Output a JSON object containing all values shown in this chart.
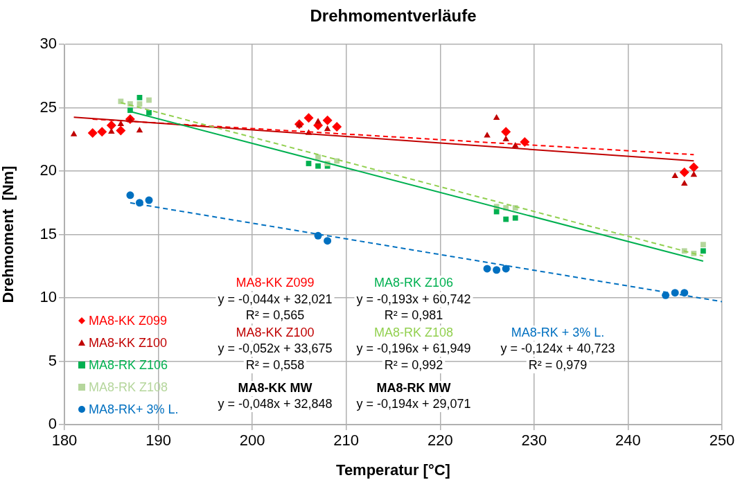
{
  "chart_data": {
    "type": "scatter",
    "title": "Drehmomentverläufe",
    "xlabel": "Temperatur [°C]",
    "ylabel": "Drehmoment  [Nm]",
    "xlim": [
      180,
      250
    ],
    "xticks": [
      180,
      190,
      200,
      210,
      220,
      230,
      240,
      250
    ],
    "ylim": [
      0,
      30
    ],
    "yticks": [
      0,
      5,
      10,
      15,
      20,
      25,
      30
    ],
    "grid": true,
    "legend": "bottom left",
    "series": [
      {
        "name": "MA8-KK Z099",
        "color": "#ff0000",
        "marker": "diamond",
        "x": [
          183,
          184,
          185,
          186,
          187,
          205,
          206,
          207,
          208,
          209,
          227,
          229,
          246,
          247
        ],
        "values": [
          23.0,
          23.1,
          23.6,
          23.2,
          24.1,
          23.7,
          24.2,
          23.6,
          24.0,
          23.5,
          23.1,
          22.3,
          19.9,
          20.3
        ]
      },
      {
        "name": "MA8-KK Z100",
        "color": "#c00000",
        "marker": "triangle",
        "x": [
          181,
          185,
          186,
          187,
          188,
          205,
          206,
          207,
          208,
          225,
          226,
          227,
          228,
          245,
          246,
          247
        ],
        "values": [
          22.9,
          23.1,
          23.7,
          24.0,
          23.2,
          23.6,
          23.0,
          23.9,
          23.3,
          22.8,
          24.2,
          22.5,
          22.0,
          19.6,
          19.0,
          19.7
        ]
      },
      {
        "name": "MA8-RK Z106",
        "color": "#00b050",
        "marker": "square",
        "x": [
          187,
          188,
          189,
          206,
          207,
          208,
          226,
          227,
          228,
          248
        ],
        "values": [
          24.8,
          25.8,
          24.6,
          20.6,
          20.4,
          20.4,
          16.8,
          16.2,
          16.3,
          13.7
        ]
      },
      {
        "name": "MA8-RK Z108",
        "color": "#b5d69c",
        "marker": "square",
        "x": [
          186,
          187,
          188,
          189,
          207,
          208,
          209,
          226,
          227,
          228,
          246,
          247,
          248
        ],
        "values": [
          25.5,
          25.3,
          25.3,
          25.6,
          21.1,
          20.6,
          20.8,
          17.2,
          17.1,
          17.1,
          13.7,
          13.5,
          14.2
        ]
      },
      {
        "name": "MA8-RK+ 3% L.",
        "color": "#0070c0",
        "marker": "circle",
        "x": [
          187,
          188,
          189,
          207,
          208,
          225,
          226,
          227,
          244,
          245,
          246
        ],
        "values": [
          18.1,
          17.5,
          17.7,
          14.9,
          14.5,
          12.3,
          12.2,
          12.3,
          10.2,
          10.4,
          10.4
        ]
      },
      {
        "type": "line",
        "color": "#ff0000",
        "marker": "none",
        "line_style": "dashed",
        "x": [
          183,
          247
        ],
        "values": [
          24.1,
          21.3
        ]
      },
      {
        "type": "line",
        "color": "#c00000",
        "marker": "none",
        "line_style": "solid",
        "x": [
          181,
          247
        ],
        "values": [
          24.25,
          20.8
        ]
      },
      {
        "type": "line",
        "color": "#00b050",
        "marker": "none",
        "line_style": "solid",
        "x": [
          187,
          248
        ],
        "values": [
          24.7,
          12.9
        ]
      },
      {
        "type": "line",
        "color": "#92d050",
        "marker": "none",
        "line_style": "dashed",
        "x": [
          186,
          248
        ],
        "values": [
          25.4,
          13.3
        ]
      },
      {
        "type": "line",
        "color": "#0070c0",
        "marker": "none",
        "line_style": "dashed",
        "x": [
          187,
          250
        ],
        "values": [
          17.5,
          9.7
        ]
      }
    ],
    "annotations": [
      "MA8-KK Z099",
      "y = -0,044x + 32,021",
      "R² = 0,565",
      "MA8-KK Z100",
      "y = -0,052x + 33,675",
      "R² = 0,558",
      "MA8-KK MW",
      "y = -0,048x + 32,848",
      "MA8-RK Z106",
      "y = -0,193x + 60,742",
      "R² = 0,981",
      "MA8-RK Z108",
      "y = -0,196x + 61,949",
      "R² = 0,992",
      "MA8-RK MW",
      "y = -0,194x + 29,071",
      "MA8-RK + 3% L.",
      "y = -0,124x + 40,723",
      "R² = 0,979"
    ]
  }
}
